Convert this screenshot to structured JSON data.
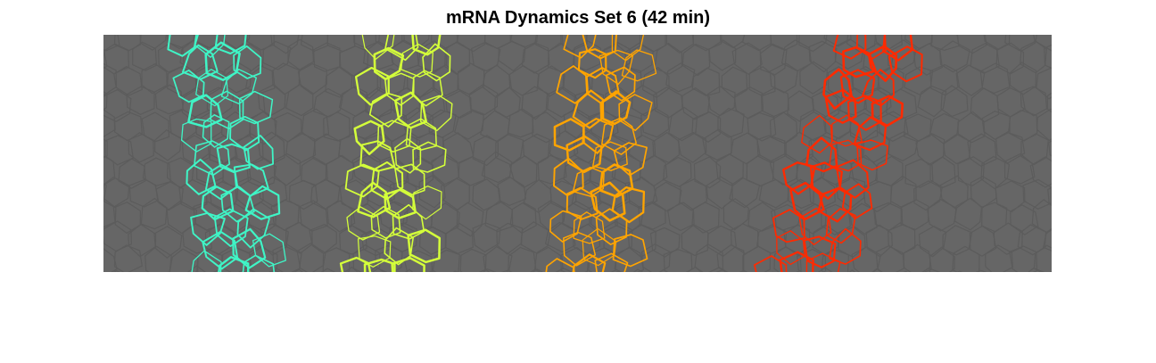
{
  "figure": {
    "title": "mRNA Dynamics Set 6 (42 min)"
  },
  "image": {
    "background_color": "#666666",
    "cell_edge_color": "#5c5c5c",
    "stripes": [
      {
        "name": "stripe-1",
        "color": "#3ff5c6"
      },
      {
        "name": "stripe-2",
        "color": "#d4ff3a"
      },
      {
        "name": "stripe-3",
        "color": "#ffa400"
      },
      {
        "name": "stripe-4",
        "color": "#ff2a00"
      }
    ]
  }
}
